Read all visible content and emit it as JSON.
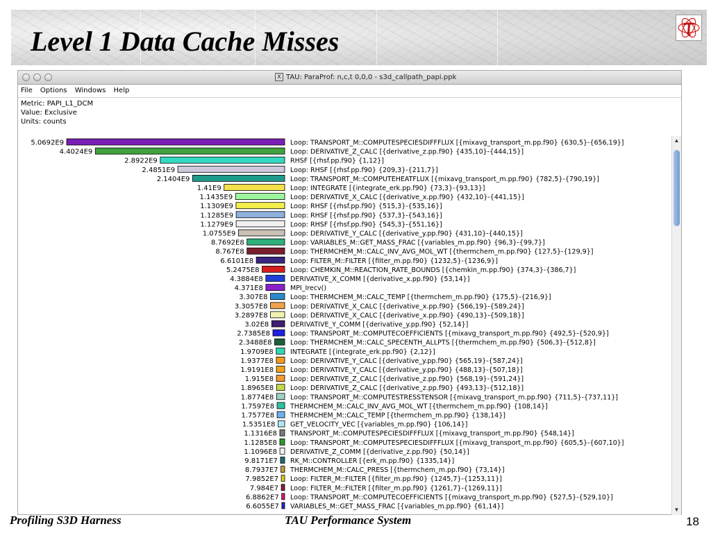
{
  "slide": {
    "title": "Level 1 Data Cache Misses",
    "footer_left": "Profiling S3D Harness",
    "footer_center": "TAU Performance System",
    "page_number": "18"
  },
  "window": {
    "title": "TAU: ParaProf: n,c,t 0,0,0 - s3d_callpath_papi.ppk",
    "menu": [
      "File",
      "Options",
      "Windows",
      "Help"
    ],
    "metric": "Metric: PAPI_L1_DCM",
    "value_type": "Value: Exclusive",
    "units": "Units: counts"
  },
  "icons": {
    "tau_logo": "tau-logo-icon",
    "x11": "x11-window-icon",
    "close": "close-icon",
    "minimize": "minimize-icon",
    "zoom": "zoom-icon"
  },
  "chart_data": {
    "type": "bar",
    "orientation": "horizontal",
    "xlim": [
      0,
      5069200000
    ],
    "series": [
      {
        "label": "5.0692E9",
        "value": 5069200000,
        "color": "#7a1fb5",
        "name": "Loop: TRANSPORT_M::COMPUTESPECIESDIFFFLUX [{mixavg_transport_m.pp.f90} {630,5}-{656,19}]"
      },
      {
        "label": "4.4024E9",
        "value": 4402400000,
        "color": "#3fa23f",
        "name": "Loop: DERIVATIVE_Z_CALC [{derivative_z.pp.f90} {435,10}-{444,15}]"
      },
      {
        "label": "2.8922E9",
        "value": 2892200000,
        "color": "#33d9c1",
        "name": "RHSF [{rhsf.pp.f90} {1,12}]"
      },
      {
        "label": "2.4851E9",
        "value": 2485100000,
        "color": "#cfc9de",
        "name": "Loop: RHSF [{rhsf.pp.f90} {209,3}-{211,7}]"
      },
      {
        "label": "2.1404E9",
        "value": 2140400000,
        "color": "#1e9a8a",
        "name": "Loop: TRANSPORT_M::COMPUTEHEATFLUX [{mixavg_transport_m.pp.f90} {782,5}-{790,19}]"
      },
      {
        "label": "1.41E9",
        "value": 1410000000,
        "color": "#f4e04a",
        "name": "Loop: INTEGRATE [{integrate_erk.pp.f90} {73,3}-{93,13}]"
      },
      {
        "label": "1.1435E9",
        "value": 1143500000,
        "color": "#9ef59e",
        "name": "Loop: DERIVATIVE_X_CALC [{derivative_x.pp.f90} {432,10}-{441,15}]"
      },
      {
        "label": "1.1309E9",
        "value": 1130900000,
        "color": "#f4ee4c",
        "name": "Loop: RHSF [{rhsf.pp.f90} {515,3}-{535,16}]"
      },
      {
        "label": "1.1285E9",
        "value": 1128500000,
        "color": "#8fb0dc",
        "name": "Loop: RHSF [{rhsf.pp.f90} {537,3}-{543,16}]"
      },
      {
        "label": "1.1279E9",
        "value": 1127900000,
        "color": "#f1f1f1",
        "name": "Loop: RHSF [{rhsf.pp.f90} {545,3}-{551,16}]"
      },
      {
        "label": "1.0755E9",
        "value": 1075500000,
        "color": "#c8c1b4",
        "name": "Loop: DERIVATIVE_Y_CALC [{derivative_y.pp.f90} {431,10}-{440,15}]"
      },
      {
        "label": "8.7692E8",
        "value": 876920000,
        "color": "#2fb07a",
        "name": "Loop: VARIABLES_M::GET_MASS_FRAC [{variables_m.pp.f90} {96,3}-{99,7}]"
      },
      {
        "label": "8.767E8",
        "value": 876700000,
        "color": "#7a1f2e",
        "name": "Loop: THERMCHEM_M::CALC_INV_AVG_MOL_WT [{thermchem_m.pp.f90} {127,5}-{129,9}]"
      },
      {
        "label": "6.6101E8",
        "value": 661010000,
        "color": "#3a2580",
        "name": "Loop: FILTER_M::FILTER [{filter_m.pp.f90} {1232,5}-{1236,9}]"
      },
      {
        "label": "5.2475E8",
        "value": 524750000,
        "color": "#d61f1f",
        "name": "Loop: CHEMKIN_M::REACTION_RATE_BOUNDS [{chemkin_m.pp.f90} {374,3}-{386,7}]"
      },
      {
        "label": "4.3884E8",
        "value": 438840000,
        "color": "#1f3fd6",
        "name": "DERIVATIVE_X_COMM [{derivative_x.pp.f90} {53,14}]"
      },
      {
        "label": "4.371E8",
        "value": 437100000,
        "color": "#8a1fcc",
        "name": "MPI_Irecv()"
      },
      {
        "label": "3.307E8",
        "value": 330700000,
        "color": "#2a8ac9",
        "name": "Loop: THERMCHEM_M::CALC_TEMP [{thermchem_m.pp.f90} {175,5}-{216,9}]"
      },
      {
        "label": "3.3057E8",
        "value": 330570000,
        "color": "#f0a24a",
        "name": "Loop: DERIVATIVE_X_CALC [{derivative_x.pp.f90} {566,19}-{589,24}]"
      },
      {
        "label": "3.2897E8",
        "value": 328970000,
        "color": "#f2f2b0",
        "name": "Loop: DERIVATIVE_X_CALC [{derivative_x.pp.f90} {490,13}-{509,18}]"
      },
      {
        "label": "3.02E8",
        "value": 302000000,
        "color": "#3f1f6e",
        "name": "DERIVATIVE_Y_COMM [{derivative_y.pp.f90} {52,14}]"
      },
      {
        "label": "2.7385E8",
        "value": 273850000,
        "color": "#1f1fe0",
        "name": "Loop: TRANSPORT_M::COMPUTECOEFFICIENTS [{mixavg_transport_m.pp.f90} {492,5}-{520,9}]"
      },
      {
        "label": "2.3488E8",
        "value": 234880000,
        "color": "#1f5e3a",
        "name": "Loop: THERMCHEM_M::CALC_SPECENTH_ALLPTS [{thermchem_m.pp.f90} {506,3}-{512,8}]"
      },
      {
        "label": "1.9709E8",
        "value": 197090000,
        "color": "#2fd9b0",
        "name": "INTEGRATE [{integrate_erk.pp.f90} {2,12}]"
      },
      {
        "label": "1.9377E8",
        "value": 193770000,
        "color": "#f29a1f",
        "name": "Loop: DERIVATIVE_Y_CALC [{derivative_y.pp.f90} {565,19}-{587,24}]"
      },
      {
        "label": "1.9191E8",
        "value": 191910000,
        "color": "#f2a41f",
        "name": "Loop: DERIVATIVE_Y_CALC [{derivative_y.pp.f90} {488,13}-{507,18}]"
      },
      {
        "label": "1.915E8",
        "value": 191500000,
        "color": "#f29a30",
        "name": "Loop: DERIVATIVE_Z_CALC [{derivative_z.pp.f90} {568,19}-{591,24}]"
      },
      {
        "label": "1.8965E8",
        "value": 189650000,
        "color": "#c7d94a",
        "name": "Loop: DERIVATIVE_Z_CALC [{derivative_z.pp.f90} {493,13}-{512,18}]"
      },
      {
        "label": "1.8774E8",
        "value": 187740000,
        "color": "#9fd2c6",
        "name": "Loop: TRANSPORT_M::COMPUTESTRESSTENSOR [{mixavg_transport_m.pp.f90} {711,5}-{737,11}]"
      },
      {
        "label": "1.7597E8",
        "value": 175970000,
        "color": "#2fc2a0",
        "name": "THERMCHEM_M::CALC_INV_AVG_MOL_WT [{thermchem_m.pp.f90} {108,14}]"
      },
      {
        "label": "1.7577E8",
        "value": 175770000,
        "color": "#6fb0f0",
        "name": "THERMCHEM_M::CALC_TEMP [{thermchem_m.pp.f90} {138,14}]"
      },
      {
        "label": "1.5351E8",
        "value": 153510000,
        "color": "#b0e6f4",
        "name": "GET_VELOCITY_VEC [{variables_m.pp.f90} {106,14}]"
      },
      {
        "label": "1.1316E8",
        "value": 113160000,
        "color": "#7a7a7a",
        "name": "TRANSPORT_M::COMPUTESPECIESDIFFFLUX [{mixavg_transport_m.pp.f90} {548,14}]"
      },
      {
        "label": "1.1285E8",
        "value": 112850000,
        "color": "#2f9a2f",
        "name": "Loop: TRANSPORT_M::COMPUTESPECIESDIFFFLUX [{mixavg_transport_m.pp.f90} {605,5}-{607,10}]"
      },
      {
        "label": "1.1096E8",
        "value": 110960000,
        "color": "#f2f2f2",
        "name": "DERIVATIVE_Z_COMM [{derivative_z.pp.f90} {50,14}]"
      },
      {
        "label": "9.8171E7",
        "value": 98171000,
        "color": "#1f6e6e",
        "name": "RK_M::CONTROLLER [{erk_m.pp.f90} {1335,14}]"
      },
      {
        "label": "8.7937E7",
        "value": 87937000,
        "color": "#c99a3a",
        "name": "THERMCHEM_M::CALC_PRESS [{thermchem_m.pp.f90} {73,14}]"
      },
      {
        "label": "7.9852E7",
        "value": 79852000,
        "color": "#e0c91f",
        "name": "Loop: FILTER_M::FILTER [{filter_m.pp.f90} {1245,7}-{1253,11}]"
      },
      {
        "label": "7.984E7",
        "value": 79840000,
        "color": "#8a1f3a",
        "name": "Loop: FILTER_M::FILTER [{filter_m.pp.f90} {1261,7}-{1269,11}]"
      },
      {
        "label": "6.8862E7",
        "value": 68862000,
        "color": "#d61f6e",
        "name": "Loop: TRANSPORT_M::COMPUTECOEFFICIENTS [{mixavg_transport_m.pp.f90} {527,5}-{529,10}]"
      },
      {
        "label": "6.6055E7",
        "value": 66055000,
        "color": "#1f2ac9",
        "name": "VARIABLES_M::GET_MASS_FRAC [{variables_m.pp.f90} {61,14}]"
      }
    ]
  }
}
